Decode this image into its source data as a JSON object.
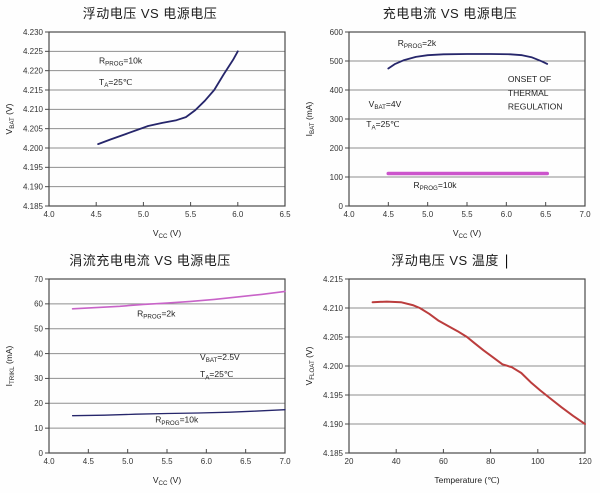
{
  "ui": {
    "text_cursor": "|"
  },
  "palette": {
    "navy": "#26266b",
    "magenta": "#cc55cc",
    "magenta_light": "#c863c8",
    "red": "#bb3d3d",
    "grid": "#8f8f8f",
    "axis": "#4a4a4a",
    "tick_text": "#333333",
    "annotation_text": "#1e1e1e"
  },
  "chart_data": [
    {
      "type": "line",
      "title": "浮动电压 VS 电源电压",
      "xlabel": "V_{CC} (V)",
      "ylabel": "V_{BAT} (V)",
      "xlim": [
        4.0,
        6.5
      ],
      "ylim": [
        4.185,
        4.23
      ],
      "xtick_labels": [
        "4.0",
        "4.5",
        "5.0",
        "5.5",
        "6.0",
        "6.5"
      ],
      "ytick_labels": [
        "4.185",
        "4.190",
        "4.195",
        "4.200",
        "4.205",
        "4.210",
        "4.215",
        "4.220",
        "4.225",
        "4.230"
      ],
      "grid": "horizontal",
      "legend_position": "none",
      "series": [
        {
          "name": "R_{PROG}=10k",
          "color": "#26266b",
          "width": 1.8,
          "points": [
            [
              4.52,
              4.201
            ],
            [
              4.65,
              4.2022
            ],
            [
              4.8,
              4.2035
            ],
            [
              4.95,
              4.2048
            ],
            [
              5.05,
              4.2057
            ],
            [
              5.2,
              4.2065
            ],
            [
              5.35,
              4.2072
            ],
            [
              5.45,
              4.208
            ],
            [
              5.55,
              4.2098
            ],
            [
              5.65,
              4.2122
            ],
            [
              5.75,
              4.215
            ],
            [
              5.85,
              4.219
            ],
            [
              5.95,
              4.2228
            ],
            [
              6.0,
              4.225
            ]
          ]
        }
      ],
      "annotations": [
        {
          "text": "R_{PROG}=10k",
          "x": 4.53,
          "y": 4.2219,
          "anchor": "start"
        },
        {
          "text": "T_{A}=25℃",
          "x": 4.53,
          "y": 4.2163,
          "anchor": "start"
        }
      ]
    },
    {
      "type": "line",
      "title": "充电电流 VS  电源电压",
      "xlabel": "V_{CC} (V)",
      "ylabel": "I_{BAT} (mA)",
      "xlim": [
        4.0,
        7.0
      ],
      "ylim": [
        0,
        600
      ],
      "xtick_labels": [
        "4.0",
        "4.5",
        "5.0",
        "5.5",
        "6.0",
        "6.5",
        "7.0"
      ],
      "ytick_labels": [
        "0",
        "100",
        "200",
        "300",
        "400",
        "500",
        "600"
      ],
      "grid": "horizontal",
      "legend_position": "none",
      "series": [
        {
          "name": "R_{PROG}=2k",
          "color": "#26266b",
          "width": 1.8,
          "points": [
            [
              4.5,
              474
            ],
            [
              4.58,
              489
            ],
            [
              4.7,
              503
            ],
            [
              4.85,
              514
            ],
            [
              5.0,
              520
            ],
            [
              5.2,
              523
            ],
            [
              5.5,
              524
            ],
            [
              5.8,
              524
            ],
            [
              6.05,
              523
            ],
            [
              6.2,
              520
            ],
            [
              6.32,
              513
            ],
            [
              6.45,
              499
            ],
            [
              6.52,
              490
            ]
          ]
        },
        {
          "name": "R_{PROG}=10k",
          "color": "#cc55cc",
          "width": 3.6,
          "points": [
            [
              4.5,
              112
            ],
            [
              6.52,
              112
            ]
          ]
        }
      ],
      "annotations": [
        {
          "text": "R_{PROG}=2k",
          "x": 4.62,
          "y": 552,
          "anchor": "start"
        },
        {
          "text": "ONSET OF",
          "x": 6.02,
          "y": 428,
          "anchor": "start"
        },
        {
          "text": "THERMAL",
          "x": 6.02,
          "y": 380,
          "anchor": "start"
        },
        {
          "text": "REGULATION",
          "x": 6.02,
          "y": 332,
          "anchor": "start"
        },
        {
          "text": "V_{BAT}=4V",
          "x": 4.25,
          "y": 342,
          "anchor": "start"
        },
        {
          "text": "T_{A}=25℃",
          "x": 4.22,
          "y": 272,
          "anchor": "start"
        },
        {
          "text": "R_{PROG}=10k",
          "x": 4.82,
          "y": 62,
          "anchor": "start"
        }
      ]
    },
    {
      "type": "line",
      "title": "涓流充电电流 VS 电源电压",
      "xlabel": "V_{CC} (V)",
      "ylabel": "I_{TRIKL} (mA)",
      "xlim": [
        4.0,
        7.0
      ],
      "ylim": [
        0,
        70
      ],
      "xtick_labels": [
        "4.0",
        "4.5",
        "5.0",
        "5.5",
        "6.0",
        "6.5",
        "7.0"
      ],
      "ytick_labels": [
        "0",
        "10",
        "20",
        "30",
        "40",
        "50",
        "60",
        "70"
      ],
      "grid": "horizontal",
      "legend_position": "none",
      "series": [
        {
          "name": "R_{PROG}=2k",
          "color": "#c863c8",
          "width": 1.6,
          "points": [
            [
              4.3,
              58.0
            ],
            [
              4.6,
              58.5
            ],
            [
              4.9,
              59.0
            ],
            [
              5.2,
              59.8
            ],
            [
              5.5,
              60.3
            ],
            [
              5.8,
              61.0
            ],
            [
              6.1,
              61.8
            ],
            [
              6.4,
              62.8
            ],
            [
              6.7,
              63.8
            ],
            [
              7.0,
              65.0
            ]
          ]
        },
        {
          "name": "R_{PROG}=10k",
          "color": "#26266b",
          "width": 1.3,
          "points": [
            [
              4.3,
              15.0
            ],
            [
              4.7,
              15.2
            ],
            [
              5.1,
              15.6
            ],
            [
              5.5,
              15.9
            ],
            [
              5.9,
              16.1
            ],
            [
              6.3,
              16.4
            ],
            [
              6.6,
              16.8
            ],
            [
              7.0,
              17.4
            ]
          ]
        }
      ],
      "annotations": [
        {
          "text": "R_{PROG}=2k",
          "x": 5.12,
          "y": 55.0,
          "anchor": "start"
        },
        {
          "text": "V_{BAT}=2.5V",
          "x": 5.92,
          "y": 37.5,
          "anchor": "start"
        },
        {
          "text": "T_{A}=25℃",
          "x": 5.92,
          "y": 30.5,
          "anchor": "start"
        },
        {
          "text": "R_{PROG}=10k",
          "x": 5.35,
          "y": 12.2,
          "anchor": "start"
        }
      ]
    },
    {
      "type": "line",
      "title": "浮动电压 VS 温度",
      "xlabel": "Temperature (℃)",
      "ylabel": "V_{FLOAT} (V)",
      "xlim": [
        20,
        120
      ],
      "ylim": [
        4.185,
        4.215
      ],
      "xtick_labels": [
        "20",
        "40",
        "60",
        "80",
        "100",
        "120"
      ],
      "ytick_labels": [
        "4.185",
        "4.190",
        "4.195",
        "4.200",
        "4.205",
        "4.210",
        "4.215"
      ],
      "grid": "horizontal",
      "legend_position": "none",
      "series": [
        {
          "name": "V_FLOAT",
          "color": "#bb3d3d",
          "width": 2.0,
          "points": [
            [
              30,
              4.211
            ],
            [
              36,
              4.2111
            ],
            [
              42,
              4.211
            ],
            [
              47,
              4.2105
            ],
            [
              50,
              4.21
            ],
            [
              54,
              4.209
            ],
            [
              58,
              4.2078
            ],
            [
              62,
              4.2069
            ],
            [
              66,
              4.206
            ],
            [
              70,
              4.205
            ],
            [
              73,
              4.204
            ],
            [
              77,
              4.2027
            ],
            [
              81,
              4.2015
            ],
            [
              85,
              4.2003
            ],
            [
              89,
              4.1998
            ],
            [
              93,
              4.1988
            ],
            [
              97,
              4.1972
            ],
            [
              101,
              4.1958
            ],
            [
              105,
              4.1945
            ],
            [
              110,
              4.1929
            ],
            [
              115,
              4.1914
            ],
            [
              120,
              4.19
            ]
          ]
        }
      ],
      "annotations": []
    }
  ]
}
